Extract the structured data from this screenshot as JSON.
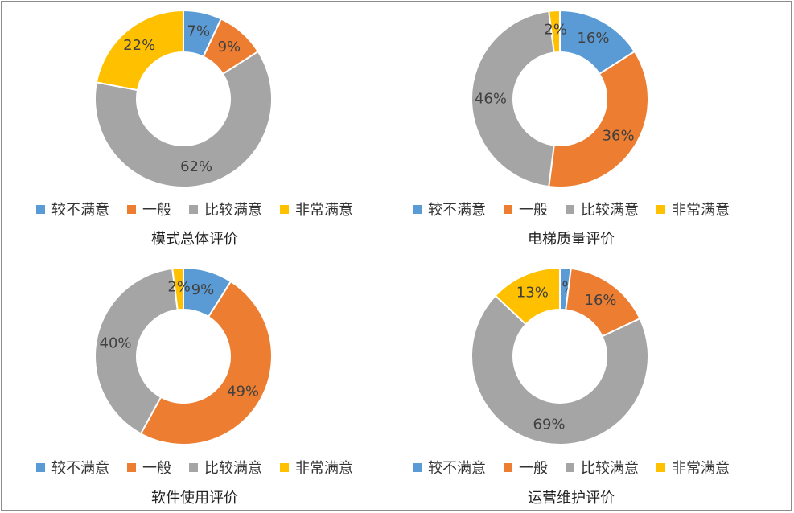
{
  "colors": {
    "较不满意": "#5b9bd5",
    "一般": "#ed7d31",
    "比较满意": "#a5a5a5",
    "非常满意": "#ffc000"
  },
  "chart_data": [
    {
      "type": "pie",
      "donut": true,
      "title": "模式总体评价",
      "categories": [
        "较不满意",
        "一般",
        "比较满意",
        "非常满意"
      ],
      "values": [
        7,
        9,
        62,
        22
      ],
      "labels": [
        "7%",
        "9%",
        "62%",
        "22%"
      ],
      "legend_position": "bottom"
    },
    {
      "type": "pie",
      "donut": true,
      "title": "电梯质量评价",
      "categories": [
        "较不满意",
        "一般",
        "比较满意",
        "非常满意"
      ],
      "values": [
        16,
        36,
        46,
        2
      ],
      "labels": [
        "16%",
        "36%",
        "46%",
        "2%"
      ],
      "legend_position": "bottom"
    },
    {
      "type": "pie",
      "donut": true,
      "title": "软件使用评价",
      "categories": [
        "较不满意",
        "一般",
        "比较满意",
        "非常满意"
      ],
      "values": [
        9,
        49,
        40,
        2
      ],
      "labels": [
        "9%",
        "49%",
        "40%",
        "2%"
      ],
      "legend_position": "bottom"
    },
    {
      "type": "pie",
      "donut": true,
      "title": "运营维护评价",
      "categories": [
        "较不满意",
        "一般",
        "比较满意",
        "非常满意"
      ],
      "values": [
        2,
        16,
        69,
        13
      ],
      "labels": [
        "2%",
        "16%",
        "69%",
        "13%"
      ],
      "legend_position": "bottom"
    }
  ]
}
